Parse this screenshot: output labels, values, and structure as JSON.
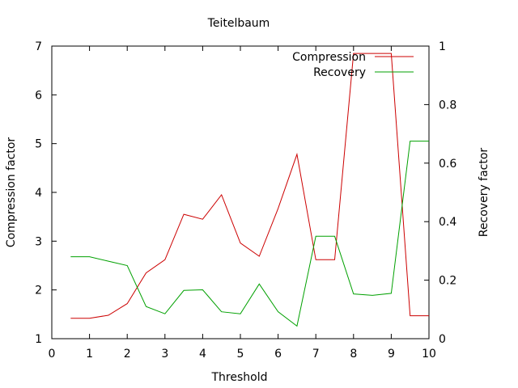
{
  "chart_data": {
    "type": "line",
    "title": "Teitelbaum",
    "xlabel": "Threshold",
    "ylabel": "Compression factor",
    "y2label": "Recovery factor",
    "xlim": [
      0,
      10
    ],
    "ylim": [
      1,
      7
    ],
    "y2lim": [
      0,
      1
    ],
    "x_ticks": [
      "0",
      "1",
      "2",
      "3",
      "4",
      "5",
      "6",
      "7",
      "8",
      "9",
      "10"
    ],
    "y_ticks": [
      "1",
      "2",
      "3",
      "4",
      "5",
      "6",
      "7"
    ],
    "y2_ticks": [
      "0",
      "0.2",
      "0.4",
      "0.6",
      "0.8",
      "1"
    ],
    "grid": false,
    "legend_position": "top-right",
    "x": [
      0.5,
      1.0,
      1.5,
      2.0,
      2.5,
      3.0,
      3.5,
      4.0,
      4.5,
      5.0,
      5.5,
      6.0,
      6.5,
      7.0,
      7.5,
      8.0,
      8.5,
      9.0,
      9.5,
      10.0
    ],
    "series": [
      {
        "name": "Compression",
        "axis": "left",
        "color": "#cc0000",
        "values": [
          1.42,
          1.42,
          1.48,
          1.72,
          2.35,
          2.62,
          3.55,
          3.45,
          3.95,
          2.96,
          2.69,
          3.67,
          4.78,
          2.62,
          2.62,
          6.85,
          6.85,
          6.85,
          1.47,
          1.47
        ]
      },
      {
        "name": "Recovery",
        "axis": "right",
        "color": "#00a000",
        "values": [
          0.28,
          0.28,
          0.265,
          0.25,
          0.11,
          0.085,
          0.165,
          0.167,
          0.092,
          0.085,
          0.187,
          0.092,
          0.043,
          0.35,
          0.35,
          0.153,
          0.148,
          0.155,
          0.675,
          0.675
        ]
      }
    ]
  }
}
